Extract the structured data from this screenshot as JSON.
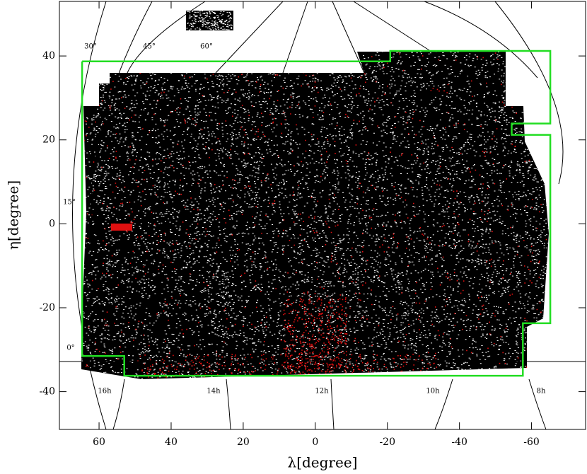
{
  "chart_data": {
    "type": "region",
    "xlabel": "λ[degree]",
    "ylabel": "η[degree]",
    "xlim": [
      71,
      -75
    ],
    "ylim": [
      -49,
      53
    ],
    "xticks": [
      60,
      40,
      20,
      0,
      -20,
      -40,
      -60
    ],
    "yticks": [
      40,
      20,
      0,
      -20,
      -40
    ],
    "boundary": {
      "color": "#22dd22",
      "x": [
        64.7,
        -14.0,
        -14.0,
        -20.8,
        -20.8,
        -65.2,
        -65.2,
        -54.5,
        -54.5,
        -65.2,
        -65.2,
        -57.6,
        -57.6,
        53.0,
        53.0,
        64.7,
        64.7
      ],
      "y": [
        38.7,
        38.7,
        38.7,
        38.7,
        41.2,
        41.2,
        23.9,
        23.9,
        21.2,
        21.2,
        -23.7,
        -23.7,
        -36.2,
        -36.2,
        -31.5,
        -31.5,
        38.7
      ]
    },
    "annotations": [
      "30°",
      "45°",
      "60°",
      "15°",
      "0°",
      "16h",
      "14h",
      "12h",
      "10h",
      "8h"
    ]
  }
}
